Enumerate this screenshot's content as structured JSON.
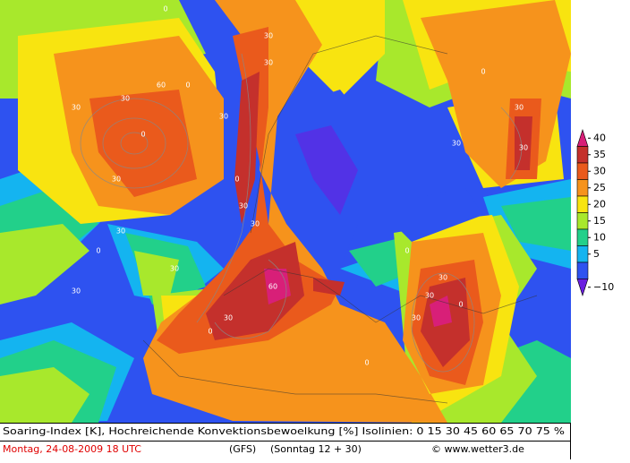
{
  "map": {
    "legend": {
      "ticks": [
        40,
        35,
        30,
        25,
        20,
        15,
        10,
        5,
        {
          "value": -10,
          "label": "−10"
        }
      ],
      "colors": [
        "#d81f78",
        "#c4302c",
        "#ea5a1c",
        "#f6931c",
        "#f8e410",
        "#a8e82c",
        "#22d08a",
        "#14b4f0",
        "#2e52f0",
        "#6a1ee0"
      ]
    },
    "contour_labels": [
      "0",
      "30",
      "30",
      "0",
      "30",
      "60",
      "30",
      "0",
      "30",
      "30",
      "0",
      "30",
      "30",
      "60",
      "30",
      "0",
      "30",
      "30",
      "0",
      "30",
      "30",
      "30",
      "0",
      "30",
      "0",
      "30",
      "0",
      "30",
      "30",
      "0"
    ],
    "caption": "Soaring-Index [K], Hochreichende Konvektionsbewoelkung [%] Isolinien: 0 15 30 45 60 65 70 75 %",
    "date": "Montag, 24-08-2009  18 UTC",
    "model": "(GFS)",
    "run": "(Sonntag 12 + 30)",
    "credit": "© www.wetter3.de"
  }
}
